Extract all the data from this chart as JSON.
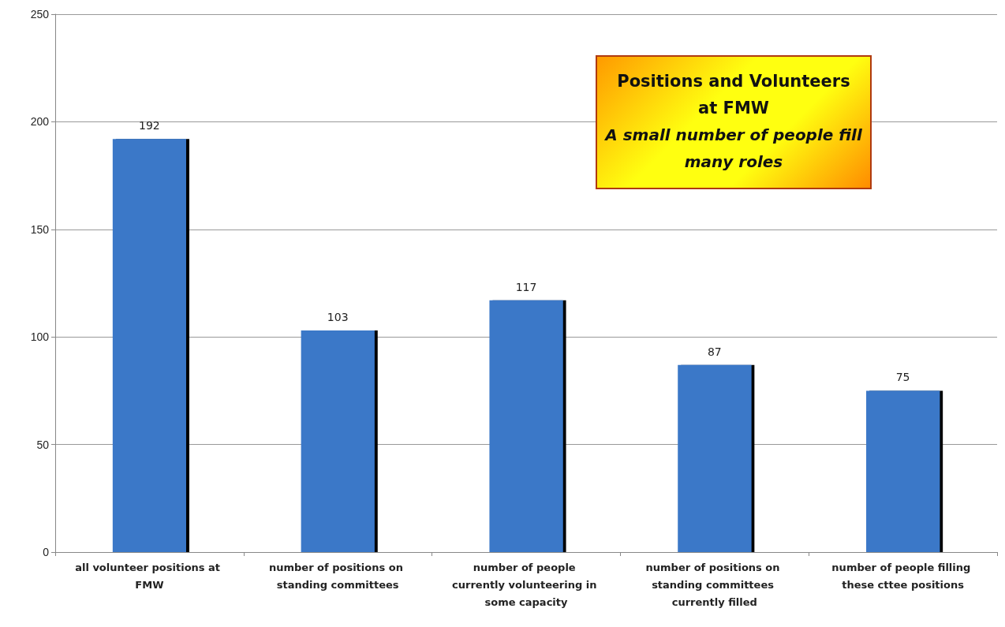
{
  "chart_data": {
    "type": "bar",
    "title": "Positions and Volunteers at FMW",
    "subtitle": "A small number of people fill many roles",
    "categories": [
      "all volunteer positions at FMW",
      "number of positions on standing committees",
      "number of people currently volunteering in some capacity",
      "number of positions on standing committees currently filled",
      "number of people filling these cttee positions"
    ],
    "values": [
      192,
      103,
      117,
      87,
      75
    ],
    "color": "#3b78c8",
    "data_labels": true,
    "ylim": [
      0,
      250
    ],
    "yticks": [
      0,
      50,
      100,
      150,
      200,
      250
    ],
    "grid": "y"
  }
}
